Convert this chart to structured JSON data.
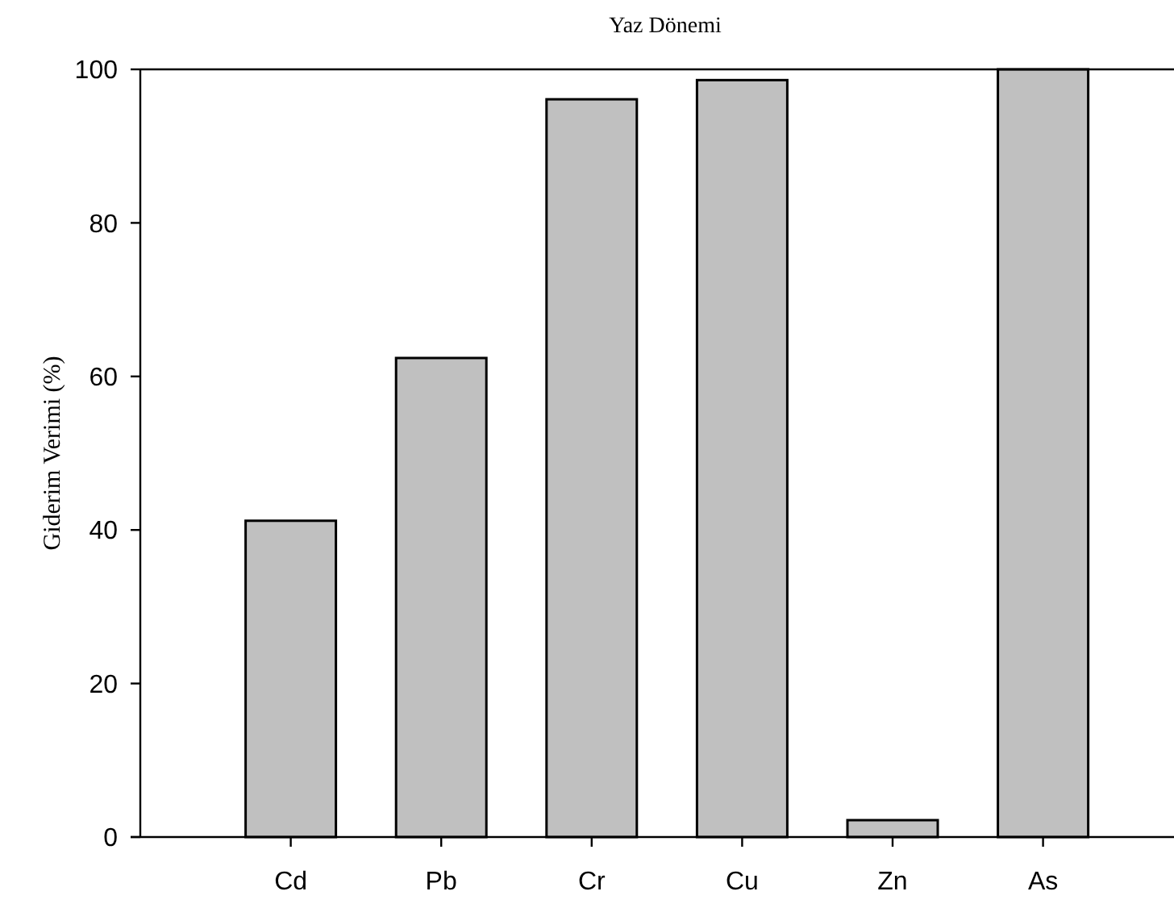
{
  "chart_data": {
    "type": "bar",
    "title": "Yaz Dönemi",
    "ylabel": "Giderim Verimi (%)",
    "categories": [
      "Cd",
      "Pb",
      "Cr",
      "Cu",
      "Zn",
      "As"
    ],
    "values": [
      41.2,
      62.4,
      96.1,
      98.6,
      2.2,
      100
    ],
    "color": "#c0c0c0",
    "ylim": [
      0,
      100
    ],
    "yticks": [
      0,
      20,
      40,
      60,
      80,
      100
    ],
    "grid": false
  }
}
